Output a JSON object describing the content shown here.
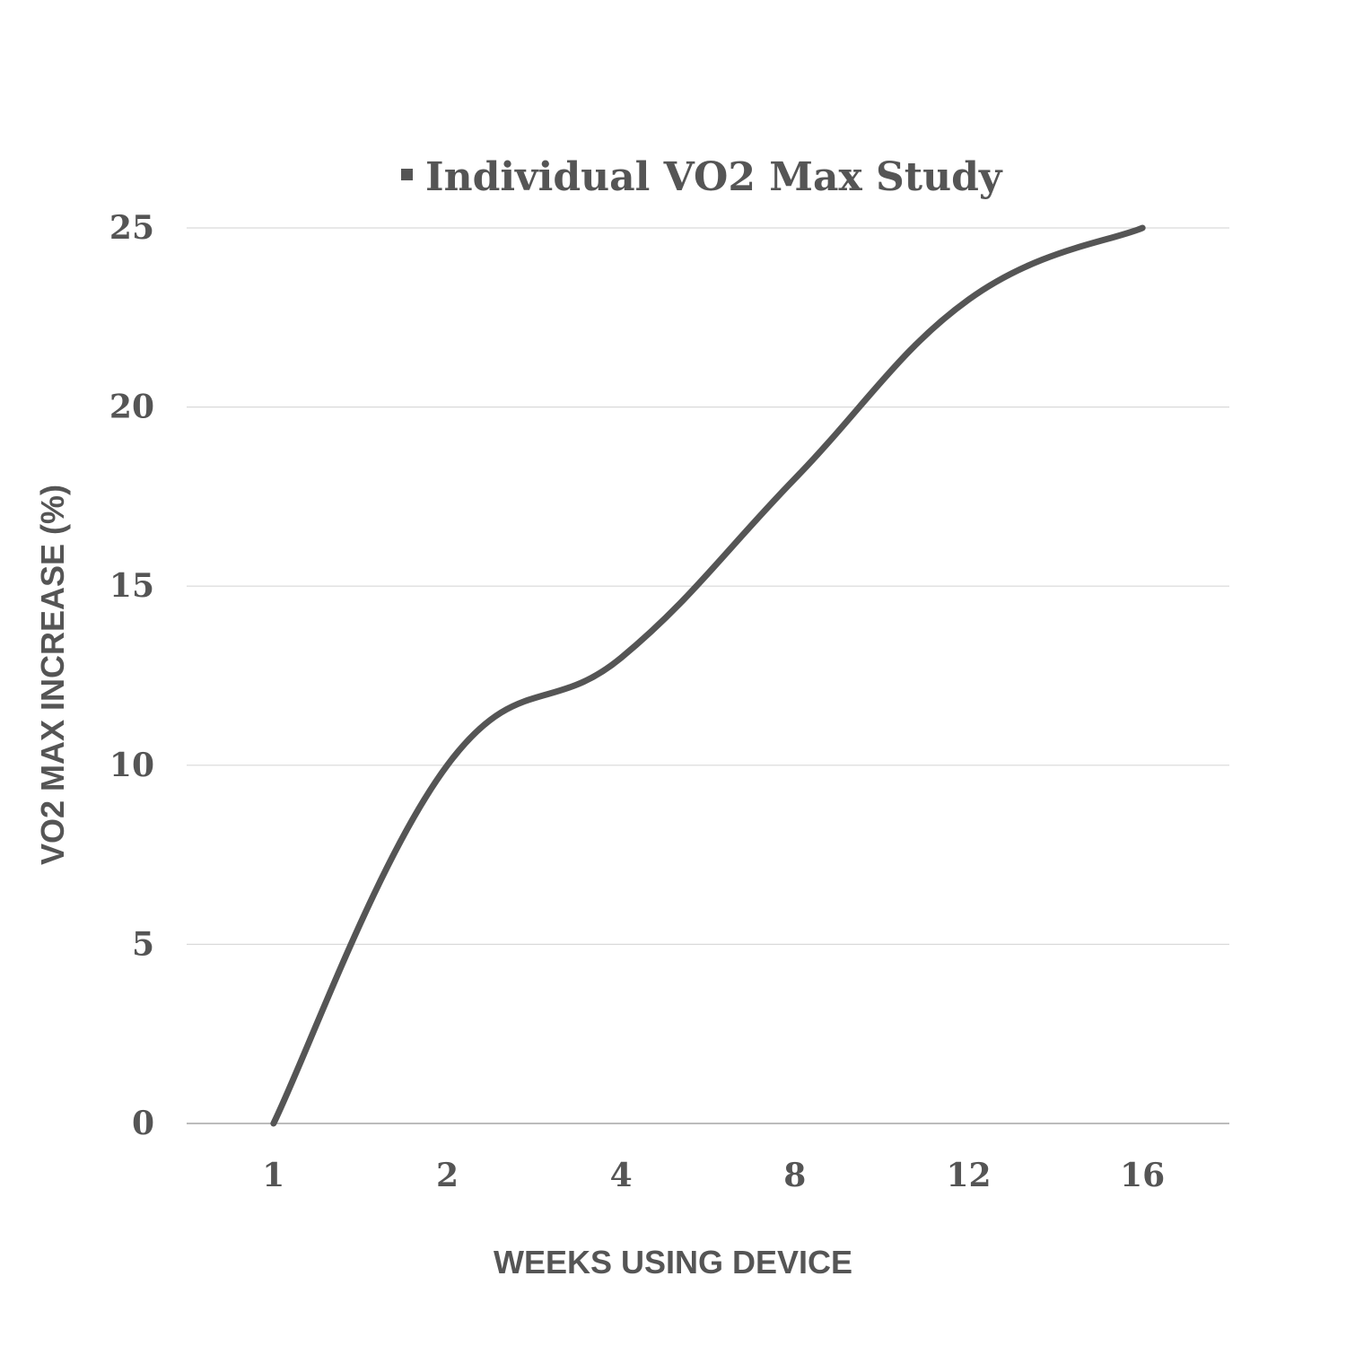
{
  "chart_data": {
    "type": "line",
    "title": "",
    "legend": {
      "position": "top",
      "entries": [
        "Individual  VO2 Max Study"
      ]
    },
    "xlabel": "WEEKS USING DEVICE",
    "ylabel": "VO2 MAX INCREASE (%)",
    "categories": [
      "1",
      "2",
      "4",
      "8",
      "12",
      "16"
    ],
    "series": [
      {
        "name": "Individual  VO2 Max Study",
        "values": [
          0,
          10,
          13,
          18,
          23,
          25
        ],
        "color": "#555555"
      }
    ],
    "ylim": [
      0,
      25
    ],
    "yticks": [
      0,
      5,
      10,
      15,
      20,
      25
    ],
    "grid": true,
    "smooth": true
  }
}
